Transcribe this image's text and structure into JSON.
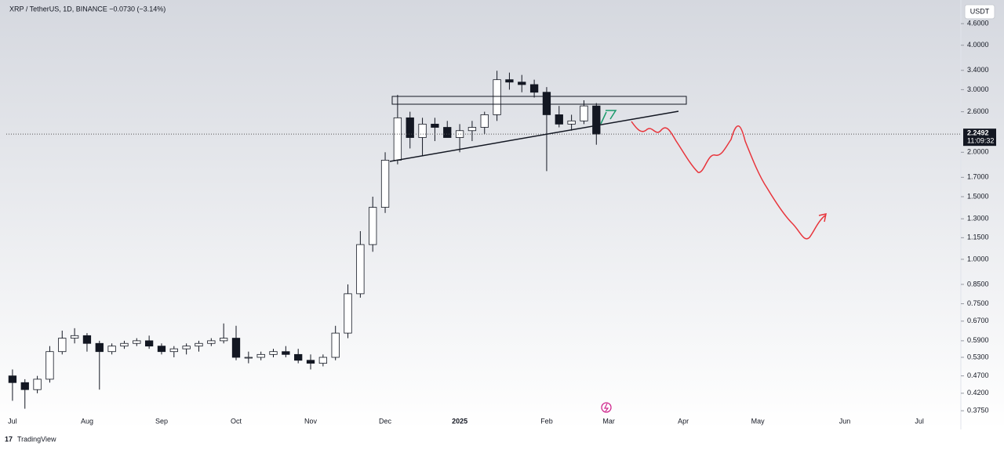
{
  "chart_data": {
    "type": "candlestick",
    "title": "XRP / TetherUS, 1D, BINANCE  −0.0730 (−3.14%)",
    "currency": "USDT",
    "categories": [
      "Jul",
      null,
      null,
      null,
      null,
      null,
      "Aug",
      null,
      null,
      null,
      null,
      null,
      "Sep",
      null,
      null,
      null,
      null,
      null,
      "Oct",
      null,
      null,
      null,
      null,
      null,
      "Nov",
      null,
      null,
      null,
      null,
      null,
      "Dec",
      null,
      null,
      null,
      null,
      null,
      "2025",
      null,
      null,
      null,
      null,
      null,
      null,
      "Feb",
      null,
      null,
      null,
      null,
      "Mar",
      null,
      null,
      null,
      null,
      null,
      "Apr",
      null,
      null,
      null,
      null,
      null,
      "May",
      null,
      null,
      null,
      null,
      null,
      null,
      "Jun",
      null,
      null,
      null,
      null,
      null,
      "Jul"
    ],
    "open": [
      0.47,
      0.45,
      0.43,
      0.46,
      0.55,
      0.6,
      0.61,
      0.58,
      0.55,
      0.57,
      0.58,
      0.59,
      0.57,
      0.55,
      0.56,
      0.57,
      0.58,
      0.59,
      0.6,
      0.53,
      0.53,
      0.54,
      0.55,
      0.54,
      0.52,
      0.51,
      0.53,
      0.62,
      0.8,
      1.1,
      1.4,
      1.9,
      2.5,
      2.2,
      2.4,
      2.35,
      2.2,
      2.3,
      2.35,
      2.55,
      3.2,
      3.15,
      3.1,
      2.95,
      2.55,
      2.4,
      2.45,
      2.7,
      null,
      null,
      null,
      null,
      null,
      null,
      null,
      null,
      null,
      null,
      null,
      null,
      null,
      null,
      null,
      null,
      null,
      null,
      null,
      null,
      null,
      null,
      null,
      null,
      null,
      null
    ],
    "high": [
      0.49,
      0.46,
      0.47,
      0.57,
      0.63,
      0.64,
      0.62,
      0.59,
      0.58,
      0.59,
      0.6,
      0.61,
      0.58,
      0.57,
      0.58,
      0.59,
      0.6,
      0.66,
      0.65,
      0.55,
      0.55,
      0.56,
      0.57,
      0.56,
      0.54,
      0.54,
      0.65,
      0.85,
      1.2,
      1.5,
      2.0,
      2.9,
      2.6,
      2.5,
      2.5,
      2.45,
      2.4,
      2.45,
      2.6,
      3.39,
      3.35,
      3.3,
      3.2,
      3.05,
      2.7,
      2.55,
      2.8,
      2.75,
      null,
      null,
      null,
      null,
      null,
      null,
      null,
      null,
      null,
      null,
      null,
      null,
      null,
      null,
      null,
      null,
      null,
      null,
      null,
      null,
      null,
      null,
      null,
      null,
      null,
      null
    ],
    "low": [
      0.4,
      0.38,
      0.42,
      0.45,
      0.54,
      0.58,
      0.55,
      0.43,
      0.54,
      0.56,
      0.57,
      0.56,
      0.54,
      0.53,
      0.54,
      0.55,
      0.57,
      0.58,
      0.52,
      0.51,
      0.52,
      0.53,
      0.53,
      0.51,
      0.49,
      0.5,
      0.52,
      0.6,
      0.78,
      1.05,
      1.35,
      1.85,
      2.05,
      1.95,
      2.15,
      2.2,
      2.0,
      2.15,
      2.25,
      2.45,
      3.0,
      2.95,
      2.85,
      1.77,
      2.35,
      2.3,
      2.4,
      2.1,
      null,
      null,
      null,
      null,
      null,
      null,
      null,
      null,
      null,
      null,
      null,
      null,
      null,
      null,
      null,
      null,
      null,
      null,
      null,
      null,
      null,
      null,
      null,
      null,
      null,
      null
    ],
    "close": [
      0.45,
      0.43,
      0.46,
      0.55,
      0.6,
      0.61,
      0.58,
      0.55,
      0.57,
      0.58,
      0.59,
      0.57,
      0.55,
      0.56,
      0.57,
      0.58,
      0.59,
      0.6,
      0.53,
      0.53,
      0.54,
      0.55,
      0.54,
      0.52,
      0.51,
      0.53,
      0.62,
      0.8,
      1.1,
      1.4,
      1.9,
      2.5,
      2.2,
      2.4,
      2.35,
      2.2,
      2.3,
      2.35,
      2.55,
      3.2,
      3.15,
      3.1,
      2.95,
      2.55,
      2.4,
      2.45,
      2.7,
      2.25,
      null,
      null,
      null,
      null,
      null,
      null,
      null,
      null,
      null,
      null,
      null,
      null,
      null,
      null,
      null,
      null,
      null,
      null,
      null,
      null,
      null,
      null,
      null,
      null,
      null,
      null
    ],
    "up_color": "#ffffff",
    "down_color": "#131722",
    "log": true,
    "ylim": [
      0.334,
      5.28
    ],
    "yticks": [
      {
        "value": 4.6,
        "label": "4.6000"
      },
      {
        "value": 4.0,
        "label": "4.0000"
      },
      {
        "value": 3.4,
        "label": "3.4000"
      },
      {
        "value": 3.0,
        "label": "3.0000"
      },
      {
        "value": 2.6,
        "label": "2.6000"
      },
      {
        "value": 2.0,
        "label": "2.0000"
      },
      {
        "value": 1.7,
        "label": "1.7000"
      },
      {
        "value": 1.5,
        "label": "1.5000"
      },
      {
        "value": 1.3,
        "label": "1.3000"
      },
      {
        "value": 1.15,
        "label": "1.1500"
      },
      {
        "value": 1.0,
        "label": "1.0000"
      },
      {
        "value": 0.85,
        "label": "0.8500"
      },
      {
        "value": 0.75,
        "label": "0.7500"
      },
      {
        "value": 0.67,
        "label": "0.6700"
      },
      {
        "value": 0.59,
        "label": "0.5900"
      },
      {
        "value": 0.53,
        "label": "0.5300"
      },
      {
        "value": 0.47,
        "label": "0.4700"
      },
      {
        "value": 0.42,
        "label": "0.4200"
      },
      {
        "value": 0.375,
        "label": "0.3750"
      }
    ],
    "last_price": {
      "value": 2.2492,
      "label": "2.2492"
    },
    "countdown": "11:09:32",
    "brand": "TradingView"
  }
}
